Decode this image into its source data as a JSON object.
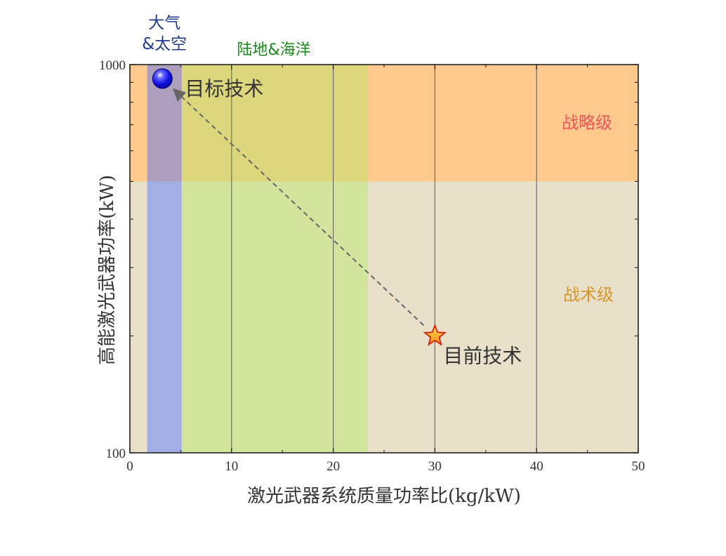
{
  "chart_data": {
    "type": "scatter",
    "xlabel": "激光武器系统质量功率比(kg/kW)",
    "ylabel": "高能激光武器功率(kW)",
    "xlim": [
      0,
      50
    ],
    "ylim": [
      100,
      1000
    ],
    "y_scale": "log",
    "x_ticks": [
      0,
      10,
      20,
      30,
      40,
      50
    ],
    "y_tick_labels": [
      "100",
      "1000"
    ],
    "grid": "vertical lines at x = 10, 20, 30, 40",
    "regions": [
      {
        "label": "战略级",
        "y_range": [
          500,
          1000
        ],
        "color": "#fec98d"
      },
      {
        "label": "战术级",
        "y_range": [
          100,
          500
        ],
        "color": "#e8e0c9"
      },
      {
        "label": "大气\n&太空",
        "x_range": [
          1.7,
          5.1
        ],
        "color": "#a3aee5",
        "label_color": "#1f3a8c"
      },
      {
        "label": "陆地&海洋",
        "x_range": [
          5.1,
          23.4
        ],
        "color": "#d3e59d",
        "label_color": "#1a8a1a"
      }
    ],
    "region_overlaps": [
      {
        "x_range": [
          1.7,
          5.1
        ],
        "y_range": [
          500,
          1000
        ],
        "color": "#aca0be"
      },
      {
        "x_range": [
          5.1,
          23.4
        ],
        "y_range": [
          500,
          1000
        ],
        "color": "#dcd77c"
      }
    ],
    "region_label_colors": {
      "战略级": "#e8585a",
      "战术级": "#d4952d"
    },
    "points": [
      {
        "label": "目标技术",
        "x": 3.2,
        "y": 920,
        "marker": "sphere",
        "color": "#1010e0"
      },
      {
        "label": "目前技术",
        "x": 30,
        "y": 200,
        "marker": "star",
        "color": "#f07020"
      }
    ],
    "annotations": [
      {
        "type": "dashed-arrow",
        "from": "目前技术",
        "to": "目标技术",
        "color": "#666666"
      }
    ]
  }
}
